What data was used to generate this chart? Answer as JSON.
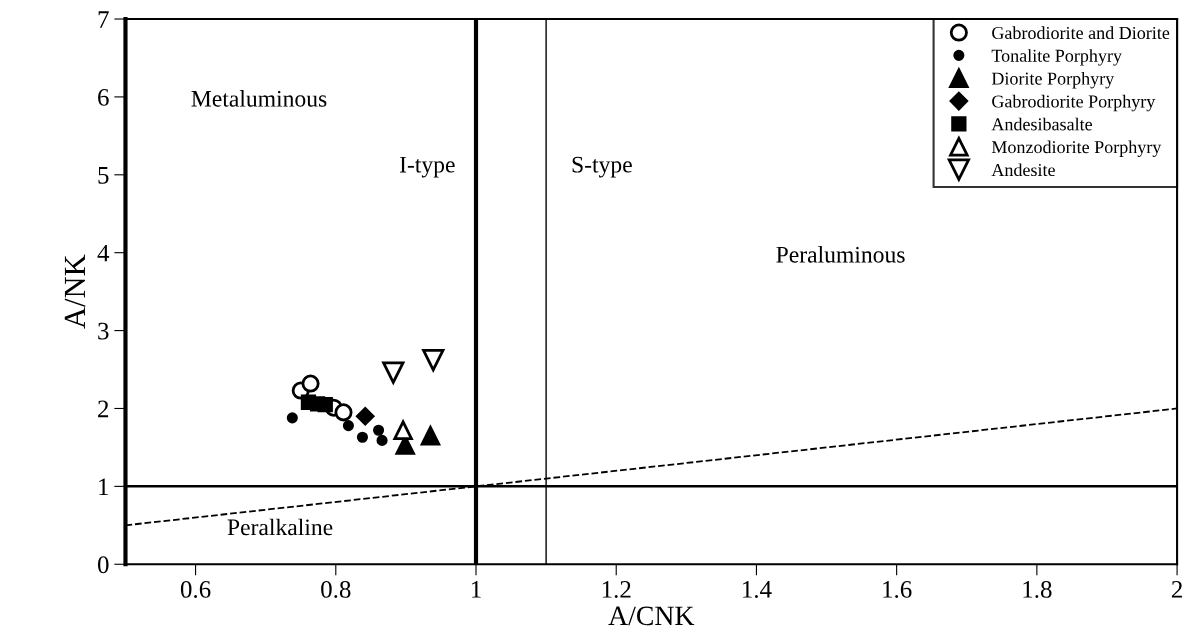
{
  "chart_data": {
    "type": "scatter",
    "xlabel": "A/CNK",
    "ylabel": "A/NK",
    "xlim": [
      0.5,
      2
    ],
    "ylim": [
      0,
      7
    ],
    "xticks": [
      0.6,
      0.8,
      1,
      1.2,
      1.4,
      1.6,
      1.8,
      2
    ],
    "yticks": [
      0,
      1,
      2,
      3,
      4,
      5,
      6,
      7
    ],
    "grid": false,
    "legend": "top right",
    "series": [
      {
        "name": "Gabrodiorite and Diorite",
        "color": "#000000",
        "marker": "circle",
        "x": [
          0.75,
          0.764,
          0.797,
          0.811
        ],
        "values": [
          2.23,
          2.32,
          2.01,
          1.95
        ]
      },
      {
        "name": "Tonalite Porphyry",
        "color": "#000000",
        "marker": "circle",
        "x": [
          0.738,
          0.818,
          0.838,
          0.861,
          0.866
        ],
        "values": [
          1.88,
          1.78,
          1.63,
          1.72,
          1.59
        ]
      },
      {
        "name": "Diorite Porphyry",
        "color": "#000000",
        "marker": "triangle",
        "x": [
          0.899,
          0.935
        ],
        "values": [
          1.53,
          1.65
        ]
      },
      {
        "name": "Gabrodiorite Porphyry",
        "color": "#000000",
        "marker": "diamond",
        "x": [
          0.842
        ],
        "values": [
          1.9
        ]
      },
      {
        "name": "Andesibasalte",
        "color": "#000000",
        "marker": "square",
        "x": [
          0.761,
          0.774,
          0.785
        ],
        "values": [
          2.08,
          2.06,
          2.05
        ]
      },
      {
        "name": "Monzodiorite Porphyry",
        "color": "#000000",
        "marker": "triangle",
        "x": [
          0.896
        ],
        "values": [
          1.72
        ]
      },
      {
        "name": "Andesite",
        "color": "#000000",
        "marker": "triangle",
        "x": [
          0.882,
          0.939
        ],
        "values": [
          2.46,
          2.62
        ]
      },
      {
        "type": "line",
        "line_style": "dashed",
        "color": "#000000",
        "x": [
          0.5,
          2
        ],
        "values": [
          0.5,
          2
        ]
      }
    ],
    "ref_lines": [
      {
        "axis": "x",
        "value": 1,
        "color": "#000000"
      },
      {
        "axis": "x",
        "value": 1.1,
        "color": "#000000"
      },
      {
        "axis": "y",
        "value": 1,
        "color": "#000000"
      }
    ],
    "annotations": [
      "Metaluminous",
      "I-type",
      "S-type",
      "Peraluminous",
      "Peralkaline"
    ]
  }
}
